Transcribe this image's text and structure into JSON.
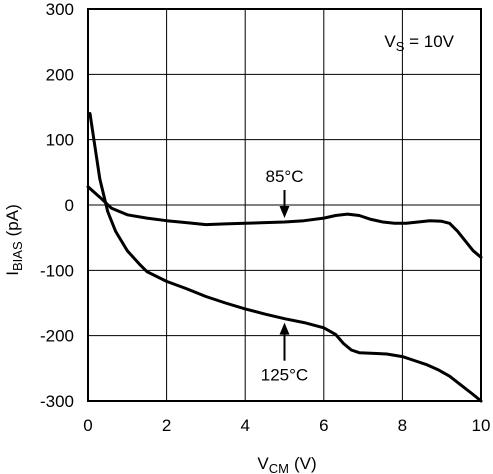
{
  "chart_data": {
    "type": "line",
    "title": "",
    "xlabel": {
      "main": "V",
      "sub": "CM",
      "unit": "(V)"
    },
    "ylabel": {
      "main": "I",
      "sub": "BIAS",
      "unit": "(pA)"
    },
    "xlim": [
      0,
      10
    ],
    "ylim": [
      -300,
      300
    ],
    "xticks": [
      "0",
      "2",
      "4",
      "6",
      "8",
      "10"
    ],
    "yticks": [
      "300",
      "200",
      "100",
      "0",
      "-100",
      "-200",
      "-300"
    ],
    "grid": true,
    "legend": "none",
    "condition": {
      "main": "V",
      "sub": "S",
      "rest": " = 10V"
    },
    "series": [
      {
        "name": "85°C",
        "x": [
          0,
          0.3,
          0.6,
          1.0,
          1.5,
          2.0,
          2.5,
          3.0,
          3.5,
          4.0,
          4.5,
          5.0,
          5.5,
          6.0,
          6.3,
          6.6,
          6.9,
          7.2,
          7.5,
          7.8,
          8.1,
          8.4,
          8.7,
          9.0,
          9.2,
          9.4,
          9.6,
          9.8,
          10.0
        ],
        "values": [
          28,
          12,
          -5,
          -15,
          -20,
          -24,
          -27,
          -30,
          -29,
          -28,
          -27,
          -26,
          -24,
          -20,
          -16,
          -14,
          -16,
          -22,
          -26,
          -28,
          -28,
          -26,
          -24,
          -25,
          -28,
          -40,
          -55,
          -70,
          -80
        ]
      },
      {
        "name": "125°C",
        "x": [
          0.05,
          0.15,
          0.3,
          0.5,
          0.7,
          1.0,
          1.3,
          1.5,
          2.0,
          2.5,
          3.0,
          3.5,
          4.0,
          4.5,
          5.0,
          5.5,
          6.0,
          6.3,
          6.5,
          6.7,
          6.9,
          7.2,
          7.6,
          8.0,
          8.3,
          8.6,
          8.9,
          9.2,
          9.5,
          9.8,
          10.0
        ],
        "values": [
          140,
          100,
          40,
          -10,
          -40,
          -70,
          -90,
          -102,
          -117,
          -128,
          -140,
          -150,
          -159,
          -167,
          -174,
          -180,
          -188,
          -198,
          -212,
          -222,
          -226,
          -227,
          -228,
          -232,
          -238,
          -244,
          -252,
          -262,
          -276,
          -290,
          -300
        ]
      }
    ],
    "annotations": [
      {
        "text": "85°C",
        "series": 0,
        "at_x": 5.0
      },
      {
        "text": "125°C",
        "series": 1,
        "at_x": 5.0
      }
    ]
  }
}
